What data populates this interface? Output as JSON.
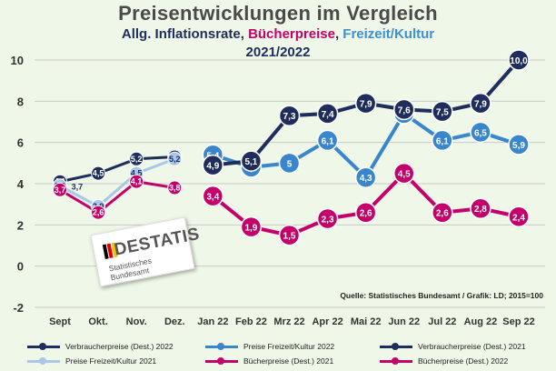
{
  "title": "Preisentwicklungen im  Vergleich",
  "subtitle_parts": {
    "inflation": "Allg. Inflationsrate",
    "sep1": ", ",
    "books": "Bücherpreise",
    "sep2": ", ",
    "leisure": "Freizeit/Kultur"
  },
  "period": "2021/2022",
  "source": "Quelle: Statistisches Bundesamt / Grafik: LD; 2015=100",
  "logo": {
    "name": "DESTATIS",
    "subtitle": "Statistisches Bundesamt"
  },
  "colors": {
    "navy": "#1f2d5c",
    "blue": "#3a86cc",
    "lightblue": "#a9c8e8",
    "magenta": "#c4006a",
    "grid": "#c9c9c9"
  },
  "chart_data": {
    "type": "line",
    "title": "Preisentwicklungen im  Vergleich",
    "x_categories": [
      "Sept",
      "Okt.",
      "Nov.",
      "Dez.",
      "Jan 22",
      "Feb 22",
      "Mrz 22",
      "Apr 22",
      "Mai 22",
      "Jun 22",
      "Jul 22",
      "Aug 22",
      "Sep 22"
    ],
    "y_ticks": [
      "-2",
      "0",
      "2",
      "4",
      "6",
      "8",
      "10"
    ],
    "ylim": [
      -2,
      10
    ],
    "grid": true,
    "series": [
      {
        "name": "Verbraucherpreise (Dest.) 2021",
        "color_key": "navy",
        "marker": "small",
        "points": [
          {
            "x": 0,
            "y": 4.1,
            "label": "4,1"
          },
          {
            "x": 1,
            "y": 4.5,
            "label": "4,5"
          },
          {
            "x": 2,
            "y": 5.2,
            "label": "5,2"
          },
          {
            "x": 3,
            "y": 5.3,
            "label": "5,3"
          }
        ],
        "extra_labels": [
          {
            "x": 0.45,
            "y": 3.9,
            "label": "3,7"
          }
        ]
      },
      {
        "name": "Preise Freizeit/Kultur 2021",
        "color_key": "lightblue",
        "marker": "small",
        "points": [
          {
            "x": 0,
            "y": 3.9,
            "label": "3,9"
          },
          {
            "x": 1,
            "y": 2.9,
            "label": "2,9"
          },
          {
            "x": 2,
            "y": 4.5,
            "label": "4,5"
          },
          {
            "x": 3,
            "y": 5.2,
            "label": "5,2"
          }
        ]
      },
      {
        "name": "Bücherpreise (Dest.) 2021",
        "color_key": "magenta",
        "marker": "small",
        "points": [
          {
            "x": 0,
            "y": 3.7,
            "label": "3,7"
          },
          {
            "x": 1,
            "y": 2.6,
            "label": "2,6"
          },
          {
            "x": 2,
            "y": 4.1,
            "label": "4,1"
          },
          {
            "x": 3,
            "y": 3.8,
            "label": "3,8"
          }
        ]
      },
      {
        "name": "Preise Freizeit/Kultur 2022",
        "color_key": "blue",
        "marker": "large",
        "points": [
          {
            "x": 4,
            "y": 5.4,
            "label": "5,4"
          },
          {
            "x": 5,
            "y": 4.8,
            "label": "4,8"
          },
          {
            "x": 6,
            "y": 5.0,
            "label": "5"
          },
          {
            "x": 7,
            "y": 6.1,
            "label": "6,1"
          },
          {
            "x": 8,
            "y": 4.3,
            "label": "4,3"
          },
          {
            "x": 9,
            "y": 7.4,
            "label": "7,4"
          },
          {
            "x": 10,
            "y": 6.1,
            "label": "6,1"
          },
          {
            "x": 11,
            "y": 6.5,
            "label": "6,5"
          },
          {
            "x": 12,
            "y": 5.9,
            "label": "5,9"
          }
        ]
      },
      {
        "name": "Verbraucherpreise (Dest.) 2022",
        "color_key": "navy",
        "marker": "large",
        "points": [
          {
            "x": 4,
            "y": 4.9,
            "label": "4,9"
          },
          {
            "x": 5,
            "y": 5.1,
            "label": "5,1"
          },
          {
            "x": 6,
            "y": 7.3,
            "label": "7,3"
          },
          {
            "x": 7,
            "y": 7.4,
            "label": "7,4"
          },
          {
            "x": 8,
            "y": 7.9,
            "label": "7,9"
          },
          {
            "x": 9,
            "y": 7.6,
            "label": "7,6"
          },
          {
            "x": 10,
            "y": 7.5,
            "label": "7,5"
          },
          {
            "x": 11,
            "y": 7.9,
            "label": "7,9"
          },
          {
            "x": 12,
            "y": 10.0,
            "label": "10,0"
          }
        ]
      },
      {
        "name": "Bücherpreise (Dest.) 2022",
        "color_key": "magenta",
        "marker": "large",
        "points": [
          {
            "x": 4,
            "y": 3.4,
            "label": "3,4"
          },
          {
            "x": 5,
            "y": 1.9,
            "label": "1,9"
          },
          {
            "x": 6,
            "y": 1.5,
            "label": "1,5"
          },
          {
            "x": 7,
            "y": 2.3,
            "label": "2,3"
          },
          {
            "x": 8,
            "y": 2.6,
            "label": "2,6"
          },
          {
            "x": 9,
            "y": 4.5,
            "label": "4,5"
          },
          {
            "x": 10,
            "y": 2.6,
            "label": "2,6"
          },
          {
            "x": 11,
            "y": 2.8,
            "label": "2,8"
          },
          {
            "x": 12,
            "y": 2.4,
            "label": "2,4"
          }
        ]
      }
    ]
  },
  "legend": [
    {
      "label": "Verbraucherpreise (Dest.) 2022",
      "color_key": "navy"
    },
    {
      "label": "Preise Freizeit/Kultur 2022",
      "color_key": "blue"
    },
    {
      "label": "Verbraucherpreise (Dest.) 2021",
      "color_key": "navy"
    },
    {
      "label": "Preise Freizeit/Kultur 2021",
      "color_key": "lightblue"
    },
    {
      "label": "Bücherpreise (Dest.) 2021",
      "color_key": "magenta"
    },
    {
      "label": "Bücherpreise (Dest.) 2022",
      "color_key": "magenta"
    }
  ]
}
